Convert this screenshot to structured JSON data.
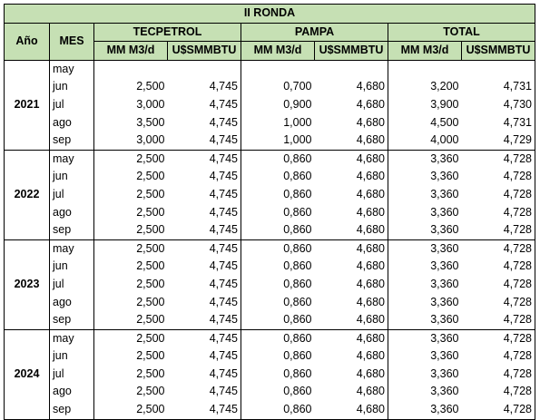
{
  "title": "II RONDA",
  "columns": {
    "year": "Año",
    "month": "MES",
    "groups": [
      "TECPETROL",
      "PAMPA",
      "TOTAL"
    ],
    "sub": [
      "MM M3/d",
      "U$SMMBTU",
      "MM M3/d",
      "U$SMMBTU",
      "MM M3/d",
      "U$SMMBTU"
    ]
  },
  "years": [
    {
      "label": "2021",
      "months": [
        {
          "month": "may",
          "values": []
        },
        {
          "month": "jun",
          "values": [
            "2,500",
            "4,745",
            "0,700",
            "4,680",
            "3,200",
            "4,731"
          ]
        },
        {
          "month": "jul",
          "values": [
            "3,000",
            "4,745",
            "0,900",
            "4,680",
            "3,900",
            "4,730"
          ]
        },
        {
          "month": "ago",
          "values": [
            "3,500",
            "4,745",
            "1,000",
            "4,680",
            "4,500",
            "4,731"
          ]
        },
        {
          "month": "sep",
          "values": [
            "3,000",
            "4,745",
            "1,000",
            "4,680",
            "4,000",
            "4,729"
          ]
        }
      ]
    },
    {
      "label": "2022",
      "months": [
        {
          "month": "may",
          "values": [
            "2,500",
            "4,745",
            "0,860",
            "4,680",
            "3,360",
            "4,728"
          ]
        },
        {
          "month": "jun",
          "values": [
            "2,500",
            "4,745",
            "0,860",
            "4,680",
            "3,360",
            "4,728"
          ]
        },
        {
          "month": "jul",
          "values": [
            "2,500",
            "4,745",
            "0,860",
            "4,680",
            "3,360",
            "4,728"
          ]
        },
        {
          "month": "ago",
          "values": [
            "2,500",
            "4,745",
            "0,860",
            "4,680",
            "3,360",
            "4,728"
          ]
        },
        {
          "month": "sep",
          "values": [
            "2,500",
            "4,745",
            "0,860",
            "4,680",
            "3,360",
            "4,728"
          ]
        }
      ]
    },
    {
      "label": "2023",
      "months": [
        {
          "month": "may",
          "values": [
            "2,500",
            "4,745",
            "0,860",
            "4,680",
            "3,360",
            "4,728"
          ]
        },
        {
          "month": "jun",
          "values": [
            "2,500",
            "4,745",
            "0,860",
            "4,680",
            "3,360",
            "4,728"
          ]
        },
        {
          "month": "jul",
          "values": [
            "2,500",
            "4,745",
            "0,860",
            "4,680",
            "3,360",
            "4,728"
          ]
        },
        {
          "month": "ago",
          "values": [
            "2,500",
            "4,745",
            "0,860",
            "4,680",
            "3,360",
            "4,728"
          ]
        },
        {
          "month": "sep",
          "values": [
            "2,500",
            "4,745",
            "0,860",
            "4,680",
            "3,360",
            "4,728"
          ]
        }
      ]
    },
    {
      "label": "2024",
      "months": [
        {
          "month": "may",
          "values": [
            "2,500",
            "4,745",
            "0,860",
            "4,680",
            "3,360",
            "4,728"
          ]
        },
        {
          "month": "jun",
          "values": [
            "2,500",
            "4,745",
            "0,860",
            "4,680",
            "3,360",
            "4,728"
          ]
        },
        {
          "month": "jul",
          "values": [
            "2,500",
            "4,745",
            "0,860",
            "4,680",
            "3,360",
            "4,728"
          ]
        },
        {
          "month": "ago",
          "values": [
            "2,500",
            "4,745",
            "0,860",
            "4,680",
            "3,360",
            "4,728"
          ]
        },
        {
          "month": "sep",
          "values": [
            "2,500",
            "4,745",
            "0,860",
            "4,680",
            "3,360",
            "4,728"
          ]
        }
      ]
    }
  ]
}
